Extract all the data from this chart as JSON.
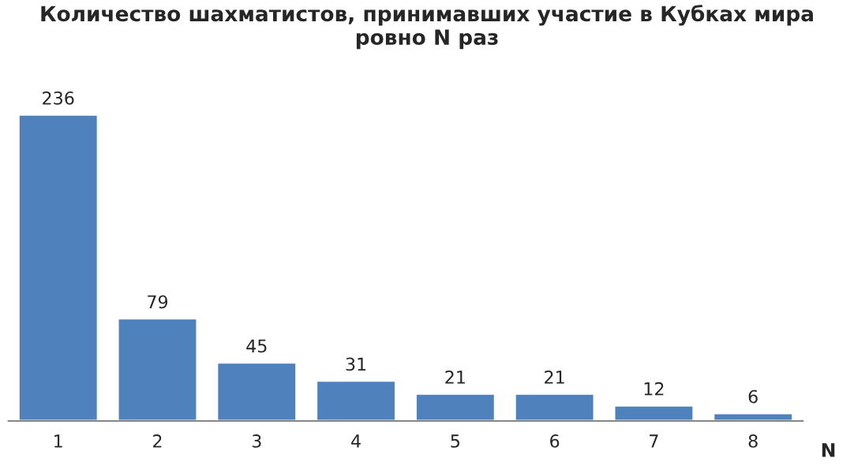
{
  "chart_data": {
    "type": "bar",
    "title": "Количество шахматистов, принимавших участие в Кубках мира\nровно N раз",
    "xlabel": "N",
    "categories": [
      "1",
      "2",
      "3",
      "4",
      "5",
      "6",
      "7",
      "8"
    ],
    "values": [
      236,
      79,
      45,
      31,
      21,
      21,
      12,
      6
    ],
    "color": "#4f81bd",
    "data_labels": true,
    "tick_labels": "x",
    "grid": false,
    "legend": false
  }
}
